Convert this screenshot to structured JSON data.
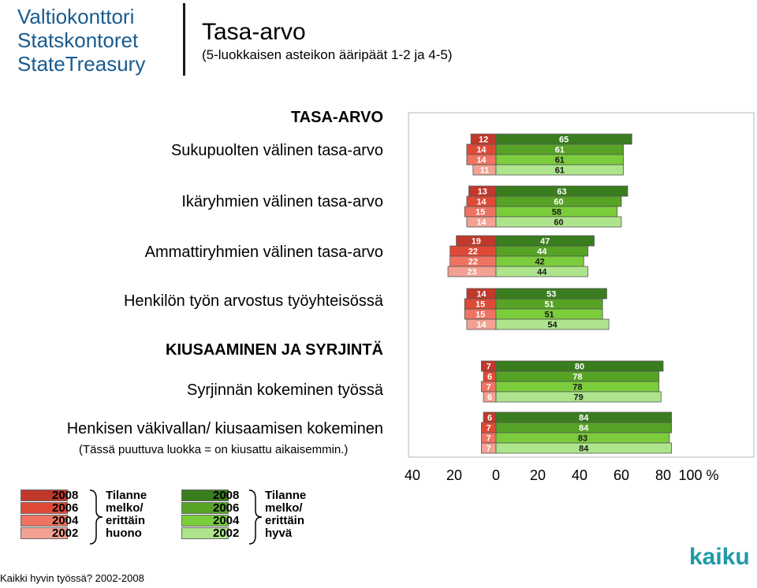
{
  "logo": {
    "lines": [
      "Valtiokonttori",
      "Statskontoret",
      "StateTreasury"
    ]
  },
  "header": {
    "title": "Tasa-arvo",
    "subtitle": "(5-luokkaisen asteikon ääripäät 1-2 ja 4-5)"
  },
  "rows": [
    {
      "label": "TASA-ARVO",
      "heading": true
    },
    {
      "label": "Sukupuolten välinen tasa-arvo"
    },
    {
      "label": "Ikäryhmien välinen tasa-arvo"
    },
    {
      "label": "Ammattiryhmien välinen tasa-arvo"
    },
    {
      "label": "Henkilön työn arvostus työyhteisössä"
    },
    {
      "label": "KIUSAAMINEN JA SYRJINTÄ",
      "heading": true
    },
    {
      "label": "Syrjinnän kokeminen työssä"
    },
    {
      "label": "Henkisen väkivallan/ kiusaamisen kokeminen"
    }
  ],
  "note": "(Tässä puuttuva luokka = on kiusattu aikaisemmin.)",
  "chart_data": {
    "type": "bar",
    "orientation": "diverging-horizontal",
    "x_ticks": [
      "40",
      "20",
      "0",
      "20",
      "40",
      "60",
      "80",
      "100 %"
    ],
    "xlim": [
      -40,
      100
    ],
    "series": [
      {
        "year": "2008"
      },
      {
        "year": "2006"
      },
      {
        "year": "2004"
      },
      {
        "year": "2002"
      }
    ],
    "groups": [
      {
        "category": "Sukupuolten välinen tasa-arvo",
        "negative": [
          12,
          14,
          14,
          11
        ],
        "positive": [
          65,
          61,
          61,
          61
        ]
      },
      {
        "category": "Ikäryhmien välinen tasa-arvo",
        "negative": [
          13,
          14,
          15,
          14
        ],
        "positive": [
          63,
          60,
          58,
          60
        ]
      },
      {
        "category": "Ammattiryhmien välinen tasa-arvo",
        "negative": [
          19,
          22,
          22,
          23
        ],
        "positive": [
          47,
          44,
          42,
          44
        ]
      },
      {
        "category": "Henkilön työn arvostus työyhteisössä",
        "negative": [
          14,
          15,
          15,
          14
        ],
        "positive": [
          53,
          51,
          51,
          54
        ]
      },
      {
        "category": "Syrjinnän kokeminen työssä",
        "negative": [
          7,
          6,
          7,
          6
        ],
        "positive": [
          80,
          78,
          78,
          79
        ]
      },
      {
        "category": "Henkisen väkivallan/ kiusaamisen kokeminen",
        "negative": [
          6,
          7,
          7,
          7
        ],
        "positive": [
          84,
          84,
          83,
          84
        ]
      }
    ],
    "colors": {
      "negative": [
        "#c0392b",
        "#df4a37",
        "#ee7362",
        "#f3a192"
      ],
      "positive": [
        "#3a7d1e",
        "#56a326",
        "#7ccd3c",
        "#aee58c"
      ]
    }
  },
  "legend": {
    "years": [
      "2008",
      "2006",
      "2004",
      "2002"
    ],
    "negative_label": [
      "Tilanne",
      "melko/",
      "erittäin",
      "huono"
    ],
    "positive_label": [
      "Tilanne",
      "melko/",
      "erittäin",
      "hyvä"
    ]
  },
  "footer": "Kaikki hyvin työssä? 2002-2008",
  "brand": "kaiku"
}
